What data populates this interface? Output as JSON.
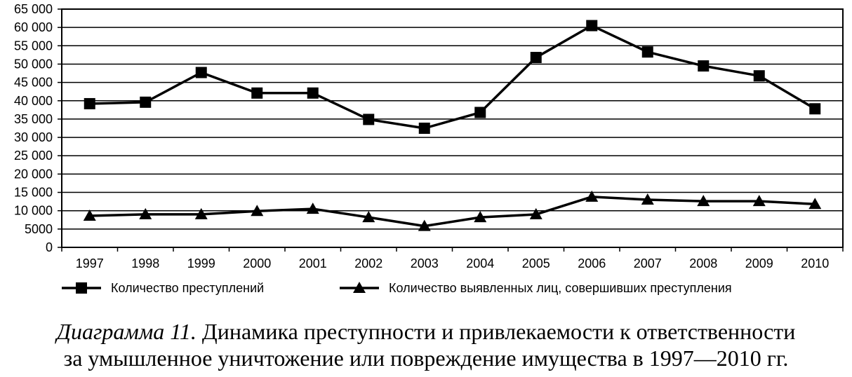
{
  "chart_data": {
    "type": "line",
    "categories": [
      "1997",
      "1998",
      "1999",
      "2000",
      "2001",
      "2002",
      "2003",
      "2004",
      "2005",
      "2006",
      "2007",
      "2008",
      "2009",
      "2010"
    ],
    "series": [
      {
        "name": "Количество преступлений",
        "marker": "square",
        "values": [
          39200,
          39600,
          47700,
          42100,
          42100,
          34900,
          32500,
          36800,
          51800,
          60500,
          53300,
          49500,
          46800,
          37800
        ]
      },
      {
        "name": "Количество выявленных лиц, совершивших преступления",
        "marker": "triangle",
        "values": [
          8600,
          9000,
          9000,
          9900,
          10500,
          8200,
          5800,
          8200,
          9000,
          13800,
          13000,
          12600,
          12600,
          11800
        ]
      }
    ],
    "y_ticks": [
      "0",
      "5000",
      "10 000",
      "15 000",
      "20 000",
      "25 000",
      "30 000",
      "35 000",
      "40 000",
      "45 000",
      "50 000",
      "55 000",
      "60 000",
      "65 000"
    ],
    "ylim": [
      0,
      65000
    ],
    "grid": "horizontal",
    "legend_position": "bottom",
    "colors": {
      "line": "#000000",
      "grid": "#000000",
      "background": "#ffffff"
    }
  },
  "caption": {
    "prefix": "Диаграмма 11.",
    "line1_rest": " Динамика преступности и привлекаемости к ответственности",
    "line2": "за умышленное уничтожение или повреждение имущества в 1997—2010 гг."
  }
}
